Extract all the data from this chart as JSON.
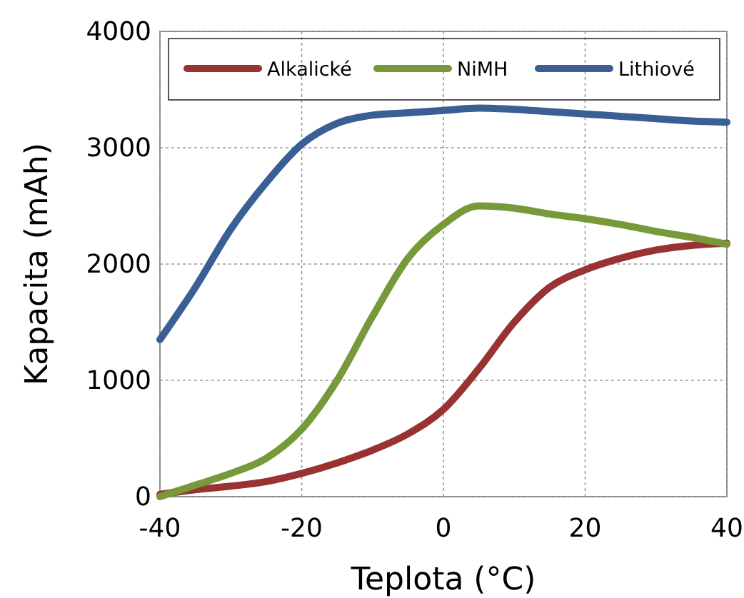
{
  "chart_data": {
    "type": "line",
    "xlabel": "Teplota (°C)",
    "ylabel": "Kapacita (mAh)",
    "xlim": [
      -40,
      40
    ],
    "xticks": [
      -40,
      -20,
      0,
      20,
      40
    ],
    "ylim": [
      0,
      4000
    ],
    "yticks": [
      0,
      1000,
      2000,
      3000,
      4000
    ],
    "grid": true,
    "legend": "top",
    "marker": "none",
    "line_style": "solid",
    "x": [
      -40,
      -35,
      -30,
      -25,
      -20,
      -15,
      -10,
      -5,
      0,
      5,
      10,
      15,
      20,
      25,
      30,
      35,
      40
    ],
    "series": [
      {
        "name": "Alkalické",
        "color": "#993333",
        "values": [
          20,
          60,
          90,
          130,
          200,
          290,
          400,
          540,
          750,
          1100,
          1500,
          1800,
          1950,
          2050,
          2120,
          2160,
          2180
        ]
      },
      {
        "name": "NiMH",
        "color": "#77993a",
        "values": [
          0,
          100,
          200,
          330,
          580,
          1000,
          1550,
          2050,
          2340,
          2500,
          2480,
          2430,
          2390,
          2340,
          2280,
          2230,
          2170
        ]
      },
      {
        "name": "Lithiové",
        "color": "#3a5f94",
        "values": [
          1350,
          1800,
          2300,
          2700,
          3030,
          3210,
          3280,
          3300,
          3320,
          3340,
          3330,
          3310,
          3290,
          3270,
          3250,
          3230,
          3220
        ]
      }
    ]
  }
}
